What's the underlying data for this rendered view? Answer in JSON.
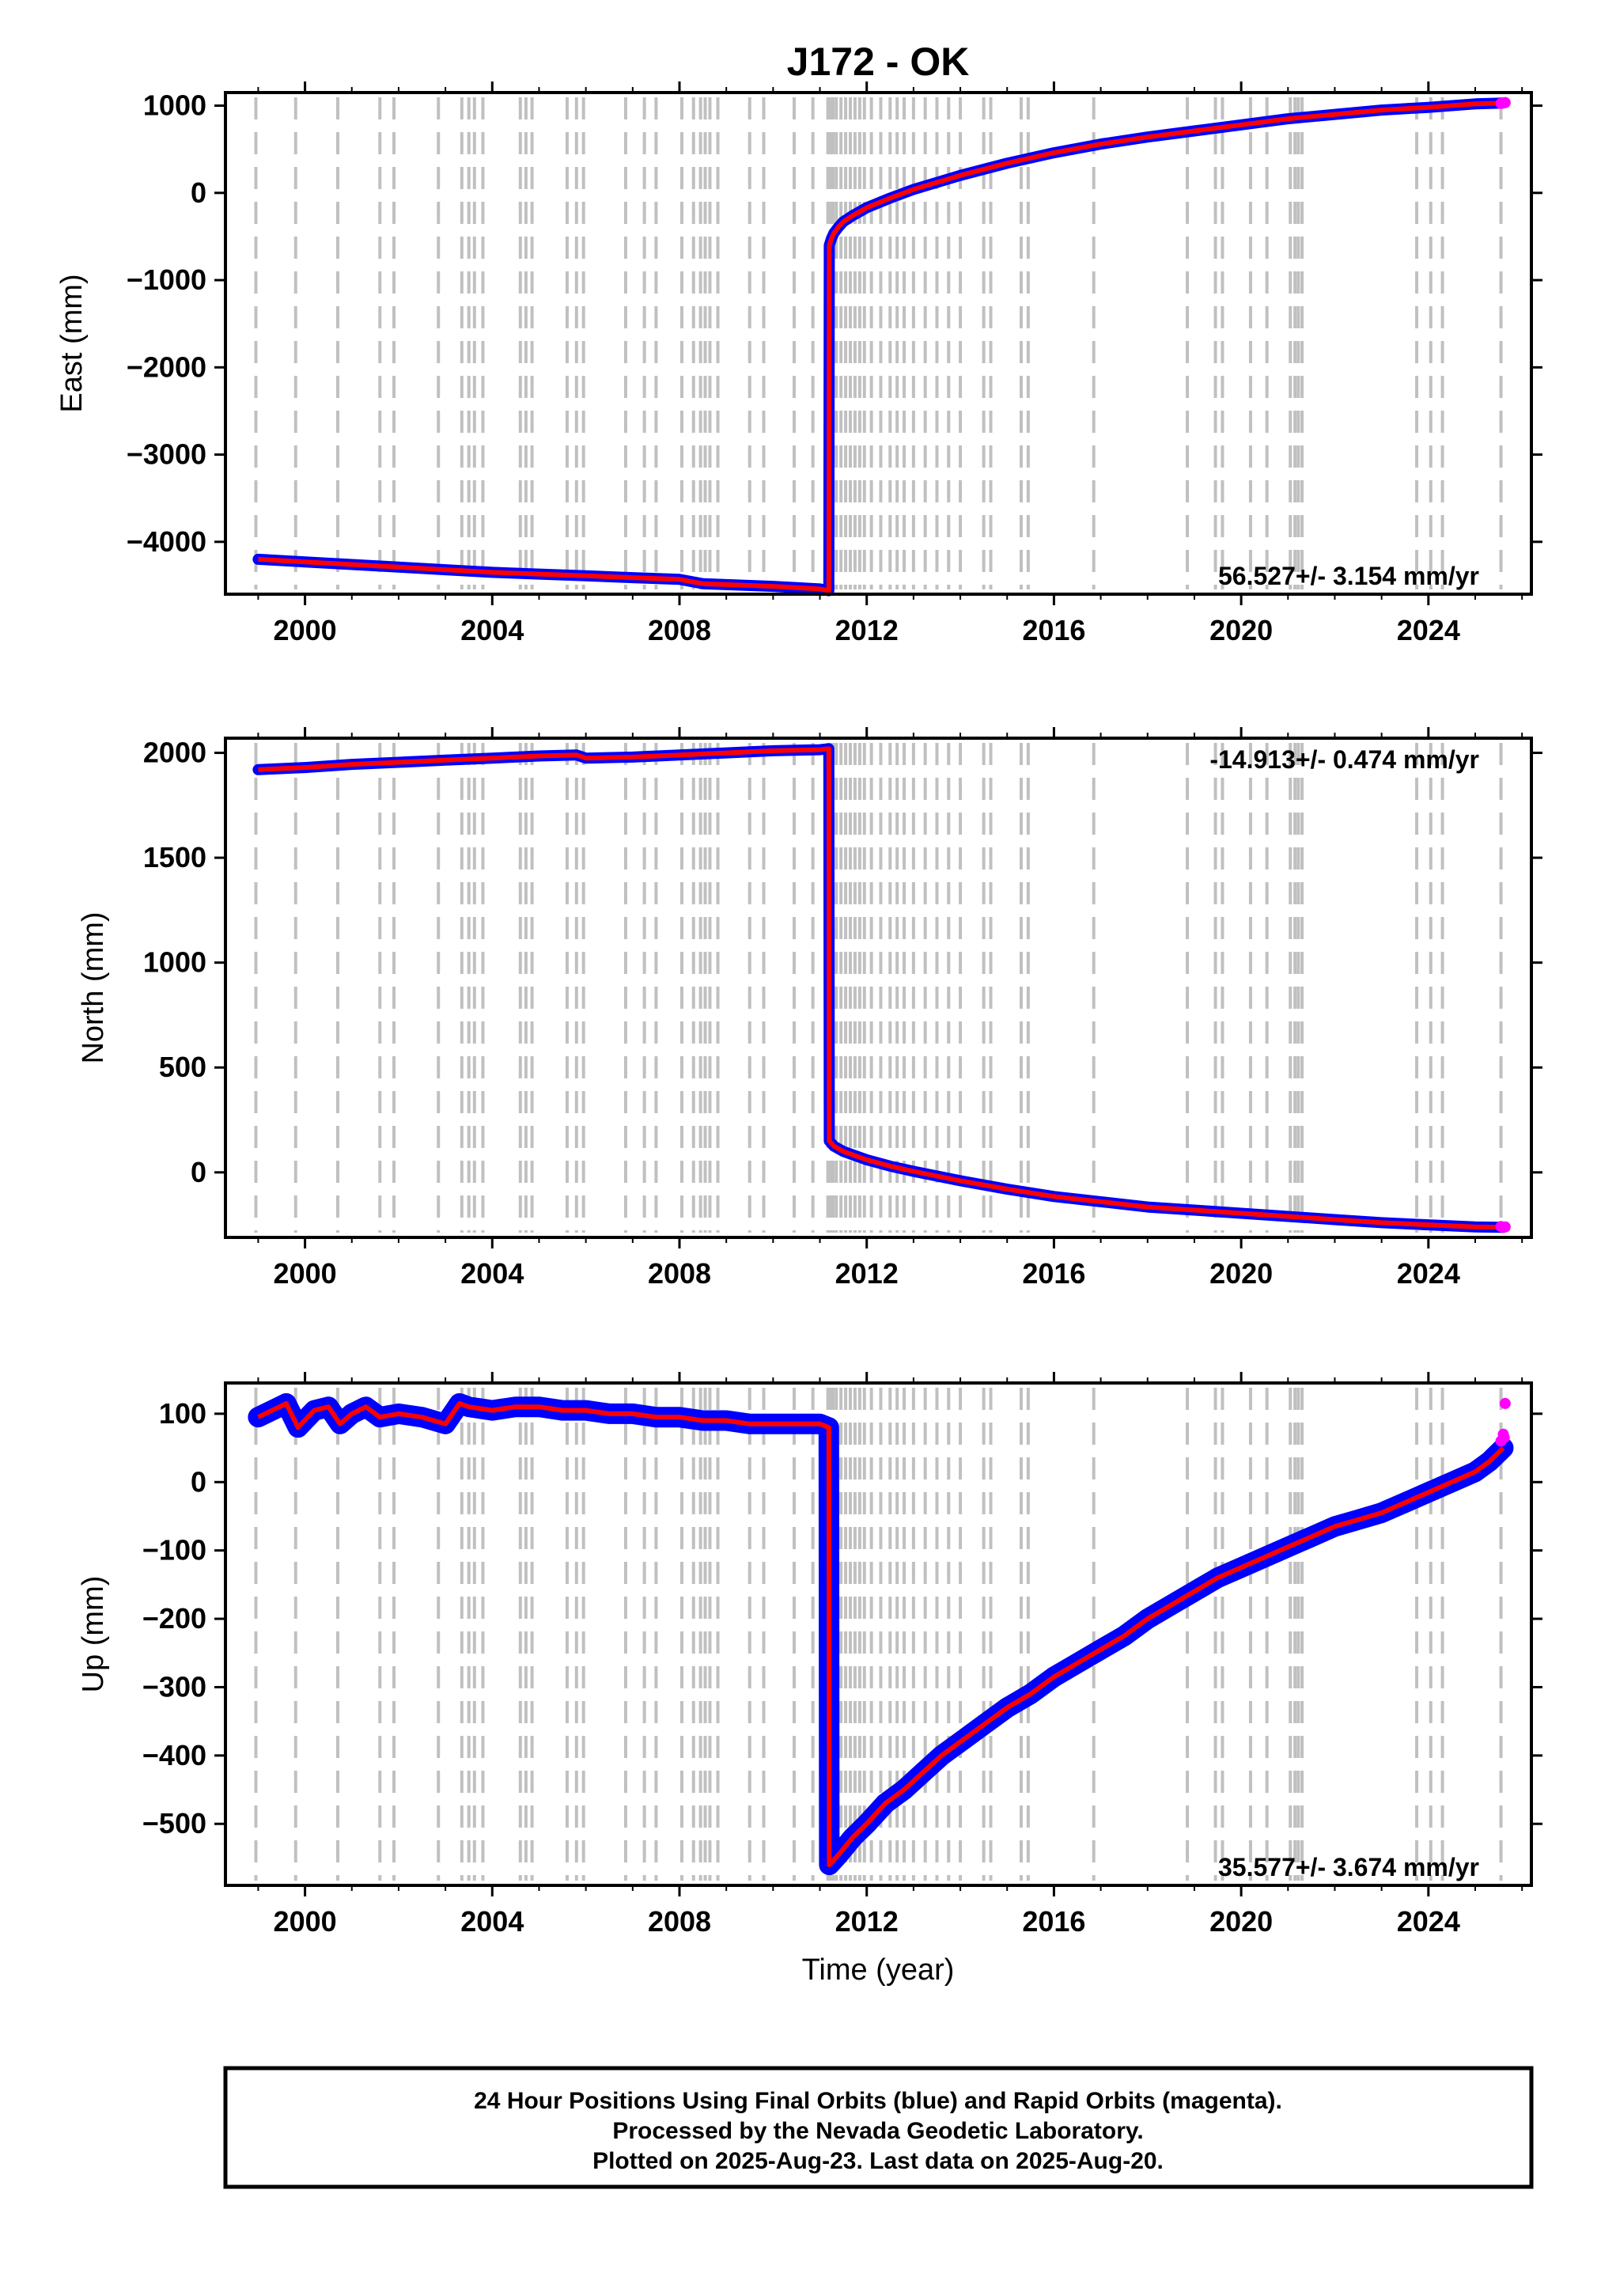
{
  "title": "J172 - OK",
  "colors": {
    "final_orbits": "#0000ff",
    "rapid_orbits": "#ff00ff",
    "model_fit": "#ff0000",
    "event_lines": "#c0c0c0",
    "frame": "#000000"
  },
  "x_axis": {
    "label": "Time (year)",
    "range": [
      1998.3,
      2026.2
    ],
    "ticks": [
      2000,
      2004,
      2008,
      2012,
      2016,
      2020,
      2024
    ]
  },
  "event_years": [
    1998.95,
    1999.8,
    2000.7,
    2001.6,
    2001.9,
    2002.85,
    2003.35,
    2003.5,
    2003.62,
    2003.8,
    2004.6,
    2004.72,
    2004.85,
    2005.6,
    2005.8,
    2005.95,
    2006.85,
    2007.25,
    2007.5,
    2008.05,
    2008.3,
    2008.45,
    2008.55,
    2008.65,
    2008.82,
    2009.5,
    2009.8,
    2010.45,
    2010.85,
    2011.17,
    2011.22,
    2011.28,
    2011.35,
    2011.45,
    2011.55,
    2011.65,
    2011.75,
    2011.85,
    2011.95,
    2012.1,
    2012.3,
    2012.5,
    2012.65,
    2012.8,
    2013.0,
    2013.25,
    2013.5,
    2013.75,
    2014.0,
    2014.5,
    2014.65,
    2015.3,
    2015.45,
    2016.85,
    2018.85,
    2019.45,
    2019.6,
    2020.2,
    2020.55,
    2021.05,
    2021.15,
    2021.22,
    2021.3,
    2023.75,
    2024.05,
    2024.3,
    2025.55
  ],
  "panels": [
    {
      "id": "east",
      "ylabel": "East (mm)",
      "ylim": [
        -4600,
        1150
      ],
      "yticks": [
        1000,
        0,
        -1000,
        -2000,
        -3000,
        -4000
      ],
      "ytick_labels": [
        "1000",
        "0",
        "−1000",
        "−2000",
        "−3000",
        "−4000"
      ],
      "rate_text": "56.527+/- 3.154 mm/yr",
      "rate_position": "bottom-right"
    },
    {
      "id": "north",
      "ylabel": "North (mm)",
      "ylim": [
        -310,
        2070
      ],
      "yticks": [
        2000,
        1500,
        1000,
        500,
        0
      ],
      "ytick_labels": [
        "2000",
        "1500",
        "1000",
        "500",
        "0"
      ],
      "rate_text": "-14.913+/- 0.474 mm/yr",
      "rate_position": "top-right"
    },
    {
      "id": "up",
      "ylabel": "Up (mm)",
      "ylim": [
        -590,
        145
      ],
      "yticks": [
        100,
        0,
        -100,
        -200,
        -300,
        -400,
        -500
      ],
      "ytick_labels": [
        "100",
        "0",
        "−100",
        "−200",
        "−300",
        "−400",
        "−500"
      ],
      "rate_text": "35.577+/- 3.674 mm/yr",
      "rate_position": "bottom-right"
    }
  ],
  "chart_data": [
    {
      "type": "line",
      "title": "J172 - OK",
      "xlabel": "Time (year)",
      "ylabel": "East (mm)",
      "ylim": [
        -4600,
        1150
      ],
      "annotation": "56.527+/- 3.154 mm/yr",
      "series": [
        {
          "x": [
            1999.0,
            2000.0,
            2001.0,
            2002.0,
            2003.0,
            2004.0,
            2005.0,
            2006.0,
            2007.0,
            2008.0,
            2008.5,
            2009.0,
            2010.0,
            2011.0,
            2011.19,
            2011.2,
            2011.25,
            2011.3,
            2011.4,
            2011.5,
            2011.7,
            2012.0,
            2012.5,
            2013.0,
            2014.0,
            2015.0,
            2016.0,
            2017.0,
            2018.0,
            2019.0,
            2020.0,
            2021.0,
            2022.0,
            2023.0,
            2024.0,
            2025.0,
            2025.6
          ],
          "y": [
            -4200,
            -4230,
            -4260,
            -4290,
            -4320,
            -4350,
            -4370,
            -4390,
            -4410,
            -4430,
            -4480,
            -4490,
            -4510,
            -4540,
            -4560,
            -600,
            -520,
            -460,
            -390,
            -330,
            -260,
            -170,
            -60,
            40,
            200,
            340,
            460,
            560,
            640,
            710,
            780,
            850,
            900,
            950,
            980,
            1020,
            1030
          ]
        },
        {
          "x": [
            2025.55,
            2025.6,
            2025.64
          ],
          "y": [
            1025,
            1032,
            1035
          ]
        }
      ]
    },
    {
      "type": "line",
      "xlabel": "Time (year)",
      "ylabel": "North (mm)",
      "ylim": [
        -310,
        2070
      ],
      "annotation": "-14.913+/- 0.474 mm/yr",
      "series": [
        {
          "x": [
            1999.0,
            2000.0,
            2001.0,
            2002.0,
            2003.0,
            2004.0,
            2005.0,
            2005.8,
            2006.0,
            2007.0,
            2008.0,
            2009.0,
            2010.0,
            2011.0,
            2011.19,
            2011.2,
            2011.3,
            2011.5,
            2012.0,
            2012.5,
            2013.0,
            2014.0,
            2015.0,
            2016.0,
            2017.0,
            2018.0,
            2019.0,
            2020.0,
            2021.0,
            2022.0,
            2023.0,
            2024.0,
            2025.0,
            2025.6
          ],
          "y": [
            1920,
            1930,
            1945,
            1955,
            1965,
            1975,
            1985,
            1990,
            1975,
            1980,
            1990,
            2000,
            2010,
            2015,
            2020,
            150,
            125,
            100,
            60,
            30,
            5,
            -40,
            -80,
            -115,
            -140,
            -165,
            -180,
            -195,
            -210,
            -225,
            -240,
            -250,
            -260,
            -262
          ]
        },
        {
          "x": [
            2025.55,
            2025.6,
            2025.64
          ],
          "y": [
            -258,
            -262,
            -260
          ]
        }
      ]
    },
    {
      "type": "scatter",
      "xlabel": "Time (year)",
      "ylabel": "Up (mm)",
      "ylim": [
        -590,
        145
      ],
      "annotation": "35.577+/- 3.674 mm/yr",
      "series": [
        {
          "x": [
            1999.0,
            1999.3,
            1999.6,
            1999.85,
            2000.2,
            2000.5,
            2000.75,
            2001.0,
            2001.3,
            2001.6,
            2002.0,
            2002.5,
            2003.0,
            2003.3,
            2003.5,
            2004.0,
            2004.5,
            2005.0,
            2005.5,
            2006.0,
            2006.5,
            2007.0,
            2007.5,
            2008.0,
            2008.5,
            2009.0,
            2009.5,
            2010.0,
            2010.5,
            2011.0,
            2011.19,
            2011.2,
            2011.4,
            2011.7,
            2012.0,
            2012.4,
            2012.8,
            2013.2,
            2013.6,
            2014.0,
            2014.5,
            2015.0,
            2015.5,
            2016.0,
            2016.5,
            2017.0,
            2017.5,
            2018.0,
            2018.5,
            2019.0,
            2019.5,
            2020.0,
            2020.5,
            2021.0,
            2021.5,
            2022.0,
            2022.5,
            2023.0,
            2023.5,
            2024.0,
            2024.5,
            2025.0,
            2025.3,
            2025.6
          ],
          "y": [
            95,
            105,
            115,
            80,
            105,
            110,
            85,
            100,
            110,
            95,
            100,
            95,
            85,
            115,
            110,
            105,
            110,
            110,
            105,
            105,
            100,
            100,
            95,
            95,
            90,
            90,
            85,
            85,
            85,
            85,
            80,
            -560,
            -545,
            -520,
            -500,
            -470,
            -450,
            -425,
            -400,
            -380,
            -355,
            -330,
            -310,
            -285,
            -265,
            -245,
            -225,
            -200,
            -180,
            -160,
            -140,
            -125,
            -110,
            -95,
            -80,
            -65,
            -55,
            -45,
            -30,
            -15,
            0,
            15,
            30,
            50
          ]
        },
        {
          "x": [
            2025.55,
            2025.6,
            2025.62,
            2025.64
          ],
          "y": [
            60,
            70,
            65,
            115
          ]
        }
      ]
    }
  ],
  "caption": {
    "lines": [
      "24 Hour Positions Using Final Orbits (blue) and Rapid Orbits (magenta).",
      "Processed by the Nevada Geodetic Laboratory.",
      "Plotted on 2025-Aug-23. Last data on 2025-Aug-20."
    ]
  }
}
